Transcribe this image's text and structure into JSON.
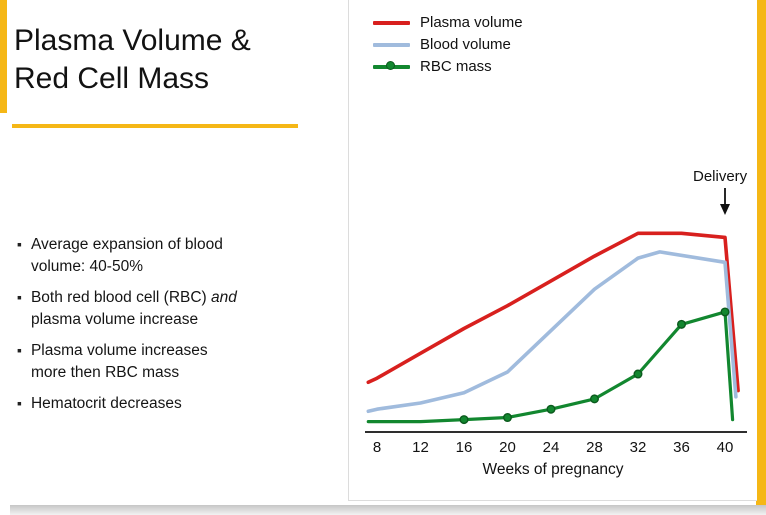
{
  "slide": {
    "title_line1": "Plasma Volume &",
    "title_line2": "Red Cell Mass",
    "accent_color": "#F5B716",
    "bullets": [
      {
        "line1": "Average expansion of blood",
        "line2": "volume: 40-50%"
      },
      {
        "line1_pre": "Both red blood cell (RBC) ",
        "line1_italic": "and",
        "line2": "plasma volume increase"
      },
      {
        "line1": "Plasma volume increases",
        "line2": "more then RBC mass"
      },
      {
        "line1": "Hematocrit decreases"
      }
    ]
  },
  "chart_data": {
    "type": "line",
    "title": "",
    "xlabel": "Weeks of pregnancy",
    "ylabel": "",
    "x_ticks": [
      8,
      12,
      16,
      20,
      24,
      28,
      32,
      36,
      40
    ],
    "x_range": [
      7,
      41.5
    ],
    "y_range": [
      0,
      100
    ],
    "grid": false,
    "y_axis_visible": false,
    "legend_position": "top-left",
    "annotation": {
      "label": "Delivery",
      "x": 40
    },
    "series": [
      {
        "name": "Plasma volume",
        "color": "#D8201E",
        "width": 3.6,
        "x": [
          7.2,
          8,
          12,
          16,
          20,
          24,
          28,
          32,
          36,
          40,
          41.2
        ],
        "values": [
          24,
          26,
          38,
          50,
          61,
          73,
          85,
          96,
          96,
          94,
          20
        ]
      },
      {
        "name": "Blood volume",
        "color": "#A0BBDD",
        "width": 3.6,
        "x": [
          7.2,
          8,
          12,
          16,
          20,
          24,
          28,
          32,
          34,
          40,
          41
        ],
        "values": [
          10,
          11,
          14,
          19,
          29,
          49,
          69,
          84,
          87,
          82,
          17
        ]
      },
      {
        "name": "RBC mass",
        "color": "#12872F",
        "width": 3.2,
        "x": [
          7.2,
          8,
          12,
          16,
          20,
          24,
          28,
          32,
          36,
          40,
          40.7
        ],
        "values": [
          5,
          5,
          5,
          6,
          7,
          11,
          16,
          28,
          52,
          58,
          6
        ],
        "marker_x": [
          16,
          20,
          24,
          28,
          32,
          36,
          40
        ],
        "marker_color": "#12872F",
        "marker_stroke": "#0B5A1D"
      }
    ]
  }
}
